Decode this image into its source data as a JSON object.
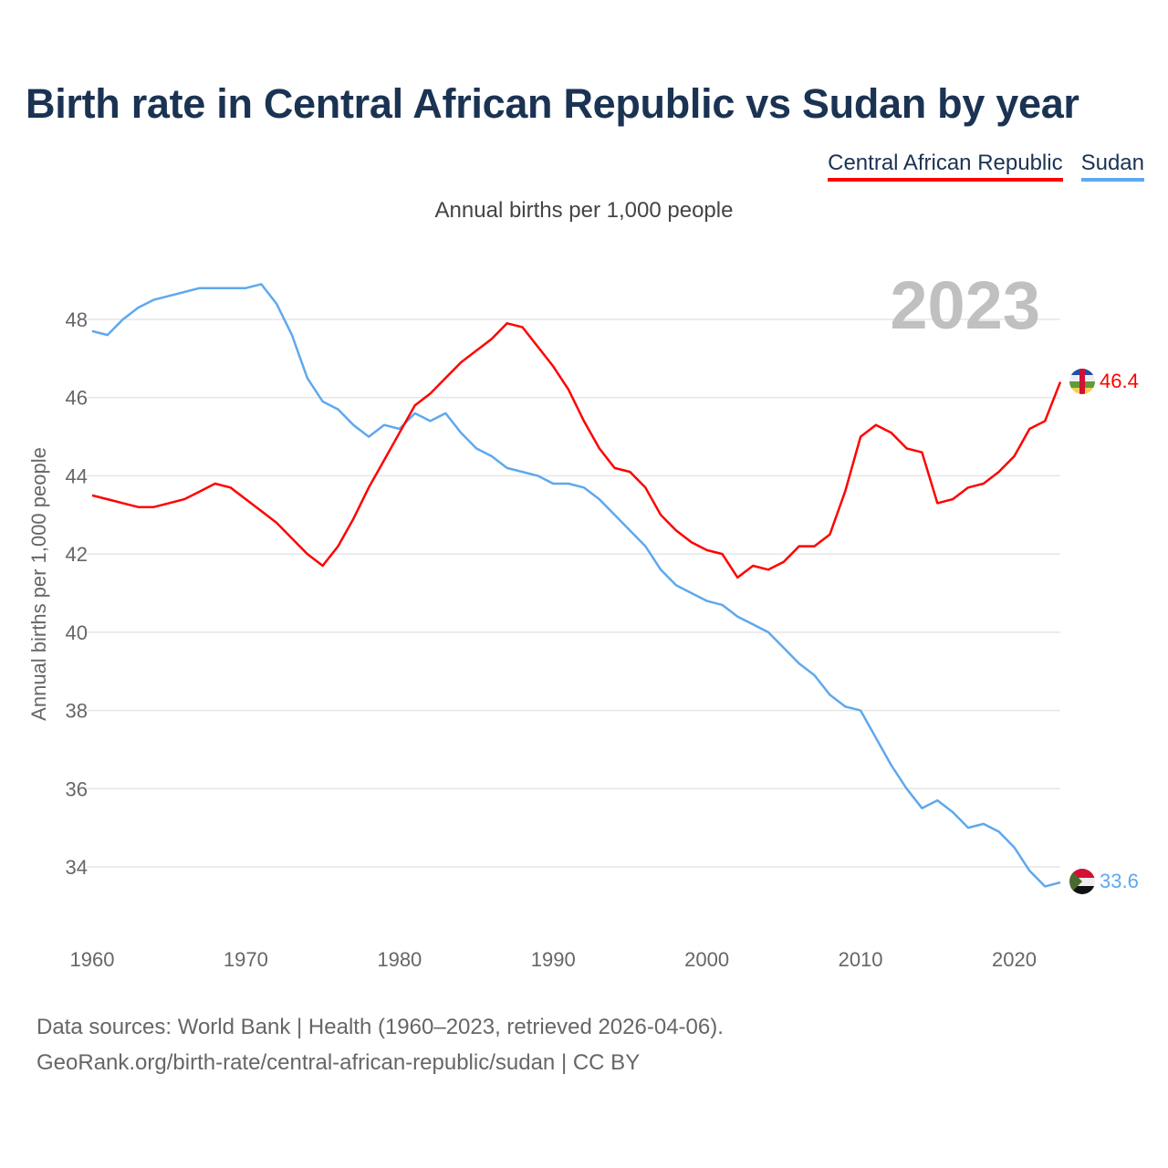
{
  "title": "Birth rate in Central African Republic vs Sudan by year",
  "legend": [
    {
      "label": "Central African Republic",
      "color": "#ff0000"
    },
    {
      "label": "Sudan",
      "color": "#5fa8ee"
    }
  ],
  "subtitle": "Annual births per 1,000 people",
  "year_watermark": "2023",
  "end_labels": {
    "car": "46.4",
    "sudan": "33.6"
  },
  "source_line1": "Data sources: World Bank | Health (1960–2023, retrieved 2026-04-06).",
  "source_line2": "GeoRank.org/birth-rate/central-african-republic/sudan | CC BY",
  "chart_data": {
    "type": "line",
    "title": "Birth rate in Central African Republic vs Sudan by year",
    "xlabel": "",
    "ylabel": "Annual births per 1,000 people",
    "xlim": [
      1960,
      2023
    ],
    "ylim": [
      32.5,
      49.3
    ],
    "xticks": [
      1960,
      1970,
      1980,
      1990,
      2000,
      2010,
      2020
    ],
    "yticks": [
      34,
      36,
      38,
      40,
      42,
      44,
      46,
      48
    ],
    "grid": true,
    "legend_position": "top-right",
    "x_start": 1960,
    "series": [
      {
        "name": "Central African Republic",
        "color": "#ff0000",
        "values": [
          43.5,
          43.4,
          43.3,
          43.2,
          43.2,
          43.3,
          43.4,
          43.6,
          43.8,
          43.7,
          43.4,
          43.1,
          42.8,
          42.4,
          42.0,
          41.7,
          42.2,
          42.9,
          43.7,
          44.4,
          45.1,
          45.8,
          46.1,
          46.5,
          46.9,
          47.2,
          47.5,
          47.9,
          47.8,
          47.3,
          46.8,
          46.2,
          45.4,
          44.7,
          44.2,
          44.1,
          43.7,
          43.0,
          42.6,
          42.3,
          42.1,
          42.0,
          41.4,
          41.7,
          41.6,
          41.8,
          42.2,
          42.2,
          42.5,
          43.6,
          45.0,
          45.3,
          45.1,
          44.7,
          44.6,
          43.3,
          43.4,
          43.7,
          43.8,
          44.1,
          44.5,
          45.2,
          45.4,
          46.4
        ]
      },
      {
        "name": "Sudan",
        "color": "#5fa8ee",
        "values": [
          47.7,
          47.6,
          48.0,
          48.3,
          48.5,
          48.6,
          48.7,
          48.8,
          48.8,
          48.8,
          48.8,
          48.9,
          48.4,
          47.6,
          46.5,
          45.9,
          45.7,
          45.3,
          45.0,
          45.3,
          45.2,
          45.6,
          45.4,
          45.6,
          45.1,
          44.7,
          44.5,
          44.2,
          44.1,
          44.0,
          43.8,
          43.8,
          43.7,
          43.4,
          43.0,
          42.6,
          42.2,
          41.6,
          41.2,
          41.0,
          40.8,
          40.7,
          40.4,
          40.2,
          40.0,
          39.6,
          39.2,
          38.9,
          38.4,
          38.1,
          38.0,
          37.3,
          36.6,
          36.0,
          35.5,
          35.7,
          35.4,
          35.0,
          35.1,
          34.9,
          34.5,
          33.9,
          33.5,
          33.6
        ]
      }
    ]
  }
}
